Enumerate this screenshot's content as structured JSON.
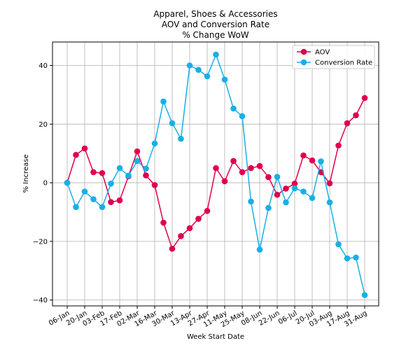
{
  "chart_data": {
    "type": "line",
    "title_lines": [
      "Apparel, Shoes & Accessories",
      "AOV and Conversion Rate",
      "% Change WoW"
    ],
    "xlabel": "Week Start Date",
    "ylabel": "% Increase",
    "ylim": [
      -42,
      48
    ],
    "yticks": [
      -40,
      -20,
      0,
      20,
      40
    ],
    "grid": true,
    "legend_position": "top-right",
    "xtick_labels": [
      "06-Jan",
      "20-Jan",
      "03-Feb",
      "17-Feb",
      "02-Mar",
      "16-Mar",
      "30-Mar",
      "13-Apr",
      "27-Apr",
      "11-May",
      "25-May",
      "08-Jun",
      "22-Jun",
      "06-Jul",
      "20-Jul",
      "03-Aug",
      "17-Aug",
      "31-Aug"
    ],
    "x": [
      "06-Jan",
      "13-Jan",
      "20-Jan",
      "27-Jan",
      "03-Feb",
      "10-Feb",
      "17-Feb",
      "24-Feb",
      "02-Mar",
      "09-Mar",
      "16-Mar",
      "23-Mar",
      "30-Mar",
      "06-Apr",
      "13-Apr",
      "20-Apr",
      "27-Apr",
      "04-May",
      "11-May",
      "18-May",
      "25-May",
      "01-Jun",
      "08-Jun",
      "15-Jun",
      "22-Jun",
      "29-Jun",
      "06-Jul",
      "13-Jul",
      "20-Jul",
      "27-Jul",
      "03-Aug",
      "10-Aug",
      "17-Aug",
      "24-Aug",
      "31-Aug"
    ],
    "series": [
      {
        "name": "AOV",
        "color": "#e0004d",
        "values": [
          0,
          9.5,
          11.7,
          3.6,
          3.3,
          -6.6,
          -6.0,
          2.2,
          10.7,
          2.5,
          -0.8,
          -13.6,
          -22.5,
          -18.2,
          -15.5,
          -12.3,
          -9.6,
          5.0,
          0.5,
          7.4,
          3.6,
          5.0,
          5.7,
          1.9,
          -4.1,
          -2.0,
          -0.3,
          9.3,
          7.6,
          3.6,
          -0.2,
          12.7,
          20.3,
          23.0,
          28.9
        ]
      },
      {
        "name": "Conversion Rate",
        "color": "#17b0e6",
        "values": [
          0,
          -8.3,
          -3.0,
          -5.6,
          -8.3,
          -0.3,
          5.0,
          2.4,
          7.4,
          4.8,
          13.4,
          27.7,
          20.3,
          15.0,
          40.0,
          38.5,
          36.3,
          43.7,
          35.2,
          25.3,
          22.7,
          -6.4,
          -22.8,
          -8.6,
          2.0,
          -6.7,
          -1.9,
          -3.0,
          -5.2,
          7.3,
          -6.7,
          -21.0,
          -25.8,
          -25.5,
          -38.3
        ]
      }
    ]
  }
}
